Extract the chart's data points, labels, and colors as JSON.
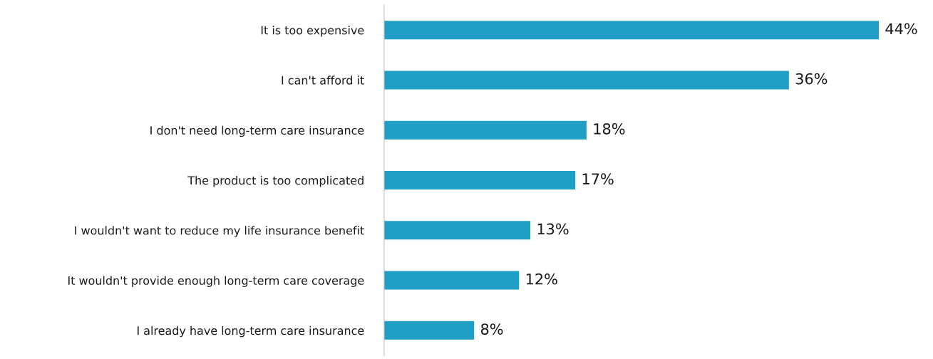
{
  "chart_data": {
    "type": "bar",
    "orientation": "horizontal",
    "categories": [
      "It is too expensive",
      "I can't afford it",
      "I don't need long-term care insurance",
      "The product is too complicated",
      "I wouldn't want to reduce my life insurance benefit",
      "It wouldn't provide enough long-term care coverage",
      "I already have long-term care insurance"
    ],
    "values": [
      44,
      36,
      18,
      17,
      13,
      12,
      8
    ],
    "value_labels": [
      "44%",
      "36%",
      "18%",
      "17%",
      "13%",
      "12%",
      "8%"
    ],
    "color": "#1f9fc5",
    "grid": false,
    "legend": false
  }
}
